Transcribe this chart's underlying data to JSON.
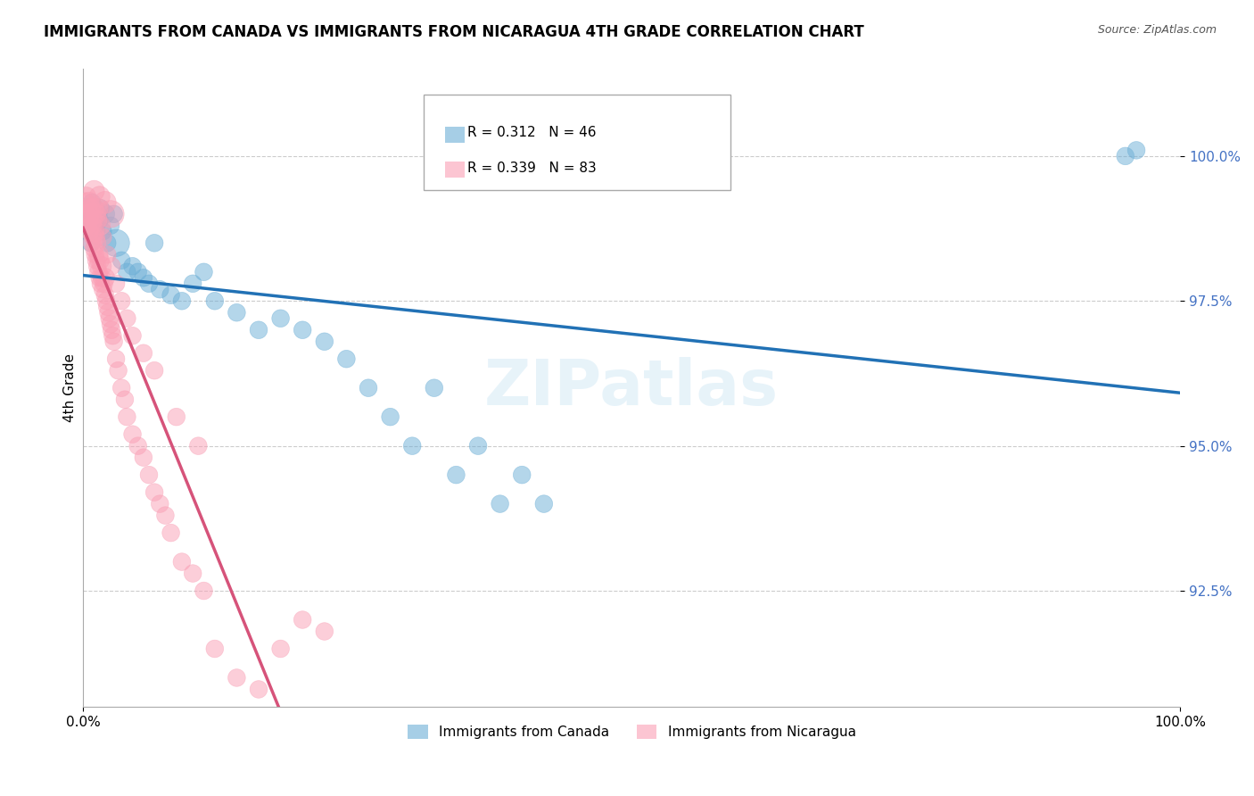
{
  "title": "IMMIGRANTS FROM CANADA VS IMMIGRANTS FROM NICARAGUA 4TH GRADE CORRELATION CHART",
  "source": "Source: ZipAtlas.com",
  "xlabel_bottom": "",
  "ylabel": "4th Grade",
  "xlim": [
    0,
    100
  ],
  "ylim": [
    90.5,
    101.5
  ],
  "yticks": [
    92.5,
    95.0,
    97.5,
    100.0
  ],
  "ytick_labels": [
    "92.5%",
    "95.0%",
    "97.5%",
    "100.0%"
  ],
  "xtick_labels": [
    "0.0%",
    "100.0%"
  ],
  "legend_canada": "Immigrants from Canada",
  "legend_nicaragua": "Immigrants from Nicaragua",
  "r_canada": 0.312,
  "n_canada": 46,
  "r_nicaragua": 0.339,
  "n_nicaragua": 83,
  "canada_color": "#6baed6",
  "nicaragua_color": "#fa9fb5",
  "canada_line_color": "#2171b5",
  "nicaragua_line_color": "#d6537a",
  "watermark": "ZIPatlas",
  "canada_x": [
    0.5,
    0.6,
    0.7,
    0.8,
    1.0,
    1.1,
    1.2,
    1.3,
    1.5,
    1.6,
    1.8,
    2.0,
    2.2,
    2.5,
    2.8,
    3.0,
    3.5,
    4.0,
    4.5,
    5.0,
    5.5,
    6.0,
    6.5,
    7.0,
    8.0,
    9.0,
    10.0,
    11.0,
    12.0,
    14.0,
    16.0,
    18.0,
    20.0,
    22.0,
    24.0,
    26.0,
    28.0,
    30.0,
    32.0,
    34.0,
    36.0,
    38.0,
    40.0,
    42.0,
    95.0,
    96.0
  ],
  "canada_y": [
    98.8,
    99.0,
    98.5,
    99.2,
    98.8,
    99.1,
    98.7,
    99.0,
    98.9,
    99.1,
    98.7,
    99.0,
    98.5,
    98.8,
    99.0,
    98.5,
    98.2,
    98.0,
    98.1,
    98.0,
    97.9,
    97.8,
    98.5,
    97.7,
    97.6,
    97.5,
    97.8,
    98.0,
    97.5,
    97.3,
    97.0,
    97.2,
    97.0,
    96.8,
    96.5,
    96.0,
    95.5,
    95.0,
    96.0,
    94.5,
    95.0,
    94.0,
    94.5,
    94.0,
    100.0,
    100.1
  ],
  "canada_size": [
    30,
    25,
    25,
    25,
    30,
    25,
    25,
    30,
    25,
    25,
    25,
    30,
    25,
    25,
    25,
    60,
    25,
    25,
    25,
    25,
    25,
    25,
    25,
    25,
    25,
    25,
    25,
    25,
    25,
    25,
    25,
    25,
    25,
    25,
    25,
    25,
    25,
    25,
    25,
    25,
    25,
    25,
    25,
    25,
    25,
    25
  ],
  "nicaragua_x": [
    0.2,
    0.3,
    0.3,
    0.4,
    0.4,
    0.5,
    0.5,
    0.6,
    0.6,
    0.7,
    0.7,
    0.8,
    0.8,
    0.9,
    0.9,
    1.0,
    1.0,
    1.1,
    1.1,
    1.2,
    1.2,
    1.3,
    1.4,
    1.4,
    1.5,
    1.5,
    1.6,
    1.7,
    1.7,
    1.8,
    1.9,
    2.0,
    2.0,
    2.1,
    2.2,
    2.3,
    2.4,
    2.5,
    2.6,
    2.7,
    2.8,
    3.0,
    3.2,
    3.5,
    3.8,
    4.0,
    4.5,
    5.0,
    5.5,
    6.0,
    6.5,
    7.0,
    7.5,
    8.0,
    9.0,
    10.0,
    11.0,
    12.0,
    14.0,
    16.0,
    18.0,
    20.0,
    22.0,
    2.5,
    2.0,
    1.5,
    1.0,
    1.0,
    1.2,
    1.3,
    1.4,
    1.6,
    1.8,
    2.2,
    2.6,
    3.0,
    3.5,
    4.0,
    4.5,
    5.5,
    6.5,
    8.5,
    10.5
  ],
  "nicaragua_y": [
    99.2,
    99.0,
    99.3,
    98.8,
    99.1,
    98.9,
    99.2,
    98.7,
    99.0,
    98.8,
    99.1,
    98.5,
    98.8,
    98.6,
    98.9,
    98.4,
    98.7,
    98.3,
    98.6,
    98.2,
    98.5,
    98.1,
    98.0,
    98.3,
    97.9,
    98.2,
    97.8,
    97.9,
    98.1,
    97.7,
    97.8,
    97.6,
    97.9,
    97.5,
    97.4,
    97.3,
    97.2,
    97.1,
    97.0,
    96.9,
    96.8,
    96.5,
    96.3,
    96.0,
    95.8,
    95.5,
    95.2,
    95.0,
    94.8,
    94.5,
    94.2,
    94.0,
    93.8,
    93.5,
    93.0,
    92.8,
    92.5,
    91.5,
    91.0,
    90.8,
    91.5,
    92.0,
    91.8,
    99.0,
    99.2,
    99.3,
    99.1,
    99.4,
    99.0,
    98.9,
    99.1,
    98.8,
    98.6,
    98.3,
    98.1,
    97.8,
    97.5,
    97.2,
    96.9,
    96.6,
    96.3,
    95.5,
    95.0
  ],
  "nicaragua_size": [
    30,
    25,
    30,
    25,
    30,
    30,
    35,
    25,
    30,
    25,
    30,
    25,
    30,
    25,
    30,
    25,
    35,
    25,
    30,
    25,
    30,
    25,
    25,
    30,
    25,
    30,
    25,
    25,
    30,
    25,
    25,
    25,
    30,
    25,
    25,
    25,
    25,
    25,
    25,
    25,
    25,
    25,
    25,
    25,
    25,
    25,
    25,
    25,
    25,
    25,
    25,
    25,
    25,
    25,
    25,
    25,
    25,
    25,
    25,
    25,
    25,
    25,
    25,
    60,
    40,
    35,
    30,
    35,
    30,
    30,
    30,
    30,
    25,
    25,
    25,
    25,
    25,
    25,
    25,
    25,
    25,
    25,
    25
  ]
}
